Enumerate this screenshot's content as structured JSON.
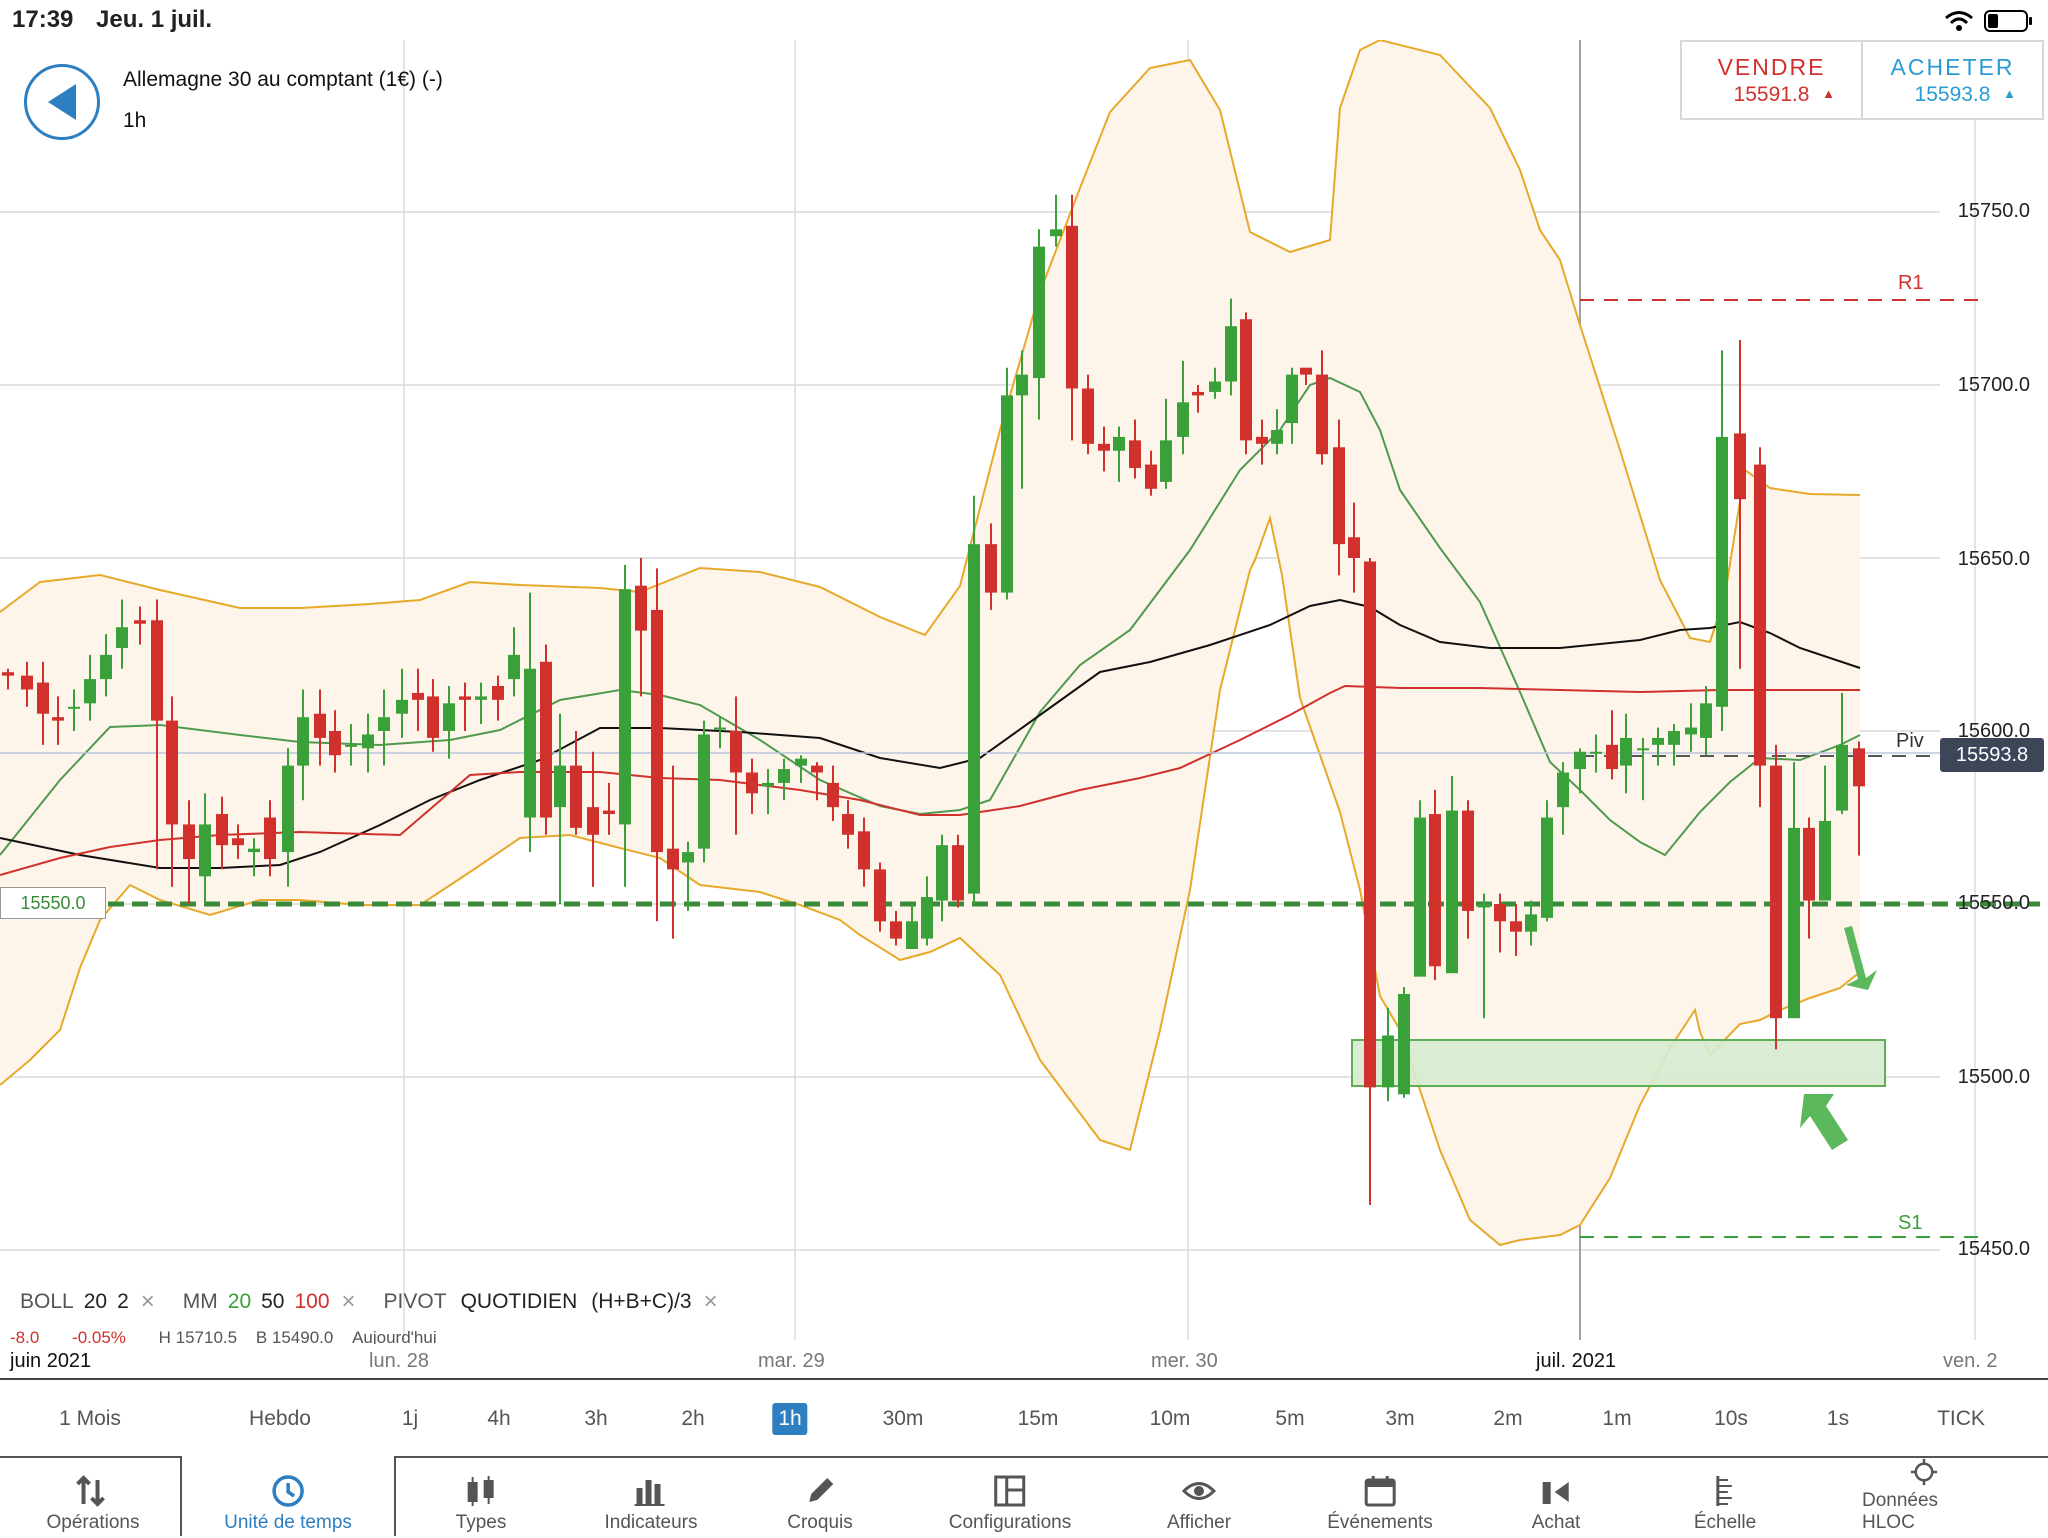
{
  "status": {
    "time": "17:39",
    "date": "Jeu. 1 juil."
  },
  "header": {
    "instrument": "Allemagne 30 au comptant (1€) (-)",
    "timeframe": "1h"
  },
  "trade": {
    "sell_label": "VENDRE",
    "sell_price": "15591.8",
    "buy_label": "ACHETER",
    "buy_price": "15593.8",
    "sell_color": "#d0312d",
    "buy_color": "#2a9bd4"
  },
  "chart": {
    "y_ticks": [
      "15750.0",
      "15700.0",
      "15650.0",
      "15600.0",
      "15550.0",
      "15500.0",
      "15450.0"
    ],
    "level_label": "15550.0",
    "pivot_label": "Piv",
    "pivot_price": "15593.8",
    "r1_label": "R1",
    "s1_label": "S1",
    "colors": {
      "up": "#3aa03a",
      "down": "#d0312d",
      "boll": "#e6a92a",
      "mm20": "#4f9a4f",
      "mm50": "#111111",
      "mm100": "#d0312d"
    }
  },
  "legend": {
    "boll": "BOLL",
    "boll_p1": "20",
    "boll_p2": "2",
    "mm": "MM",
    "mm_p1": "20",
    "mm_p2": "50",
    "mm_p3": "100",
    "pivot": "PIVOT",
    "pivot_type": "QUOTIDIEN",
    "pivot_formula": "(H+B+C)/3",
    "close": "×"
  },
  "stats": {
    "change": "-8.0",
    "change_pct": "-0.05%",
    "high": "H 15710.5",
    "low": "B 15490.0",
    "period": "Aujourd'hui"
  },
  "date_labels": [
    "juin 2021",
    "lun. 28",
    "mar. 29",
    "mer. 30",
    "juil. 2021",
    "ven. 2"
  ],
  "timeframes": [
    "1 Mois",
    "Hebdo",
    "1j",
    "4h",
    "3h",
    "2h",
    "1h",
    "30m",
    "15m",
    "10m",
    "5m",
    "3m",
    "2m",
    "1m",
    "10s",
    "1s",
    "TICK"
  ],
  "active_timeframe": "1h",
  "toolbar": [
    {
      "label": "Opérations",
      "icon": "sort-arrows-icon"
    },
    {
      "label": "Unité de temps",
      "icon": "clock-icon"
    },
    {
      "label": "Types",
      "icon": "candles-icon"
    },
    {
      "label": "Indicateurs",
      "icon": "bars-icon"
    },
    {
      "label": "Croquis",
      "icon": "pencil-icon"
    },
    {
      "label": "Configurations",
      "icon": "layout-icon"
    },
    {
      "label": "Afficher",
      "icon": "eye-icon"
    },
    {
      "label": "Événements",
      "icon": "calendar-icon"
    },
    {
      "label": "Achat",
      "icon": "buy-icon"
    },
    {
      "label": "Échelle",
      "icon": "scale-icon"
    },
    {
      "label": "Données HLOC",
      "icon": "crosshair-icon"
    }
  ]
}
